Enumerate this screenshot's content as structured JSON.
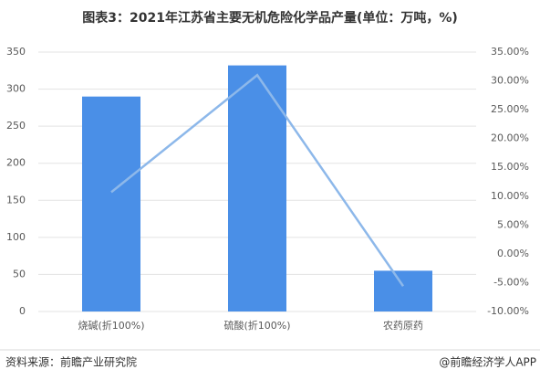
{
  "chart_data": {
    "type": "bar",
    "title": "图表3：2021年江苏省主要无机危险化学品产量(单位：万吨，%)",
    "categories": [
      "烧碱(折100%)",
      "硫酸(折100%)",
      "农药原药"
    ],
    "series": [
      {
        "type": "bar",
        "color": "#4a8fe7",
        "values": [
          290,
          332,
          55
        ]
      },
      {
        "type": "line",
        "axis": "y2",
        "color": "#8db8ea",
        "values": [
          10.7,
          31.0,
          -5.6
        ]
      }
    ],
    "ylim": [
      0,
      350
    ],
    "yticks": [
      0,
      50,
      100,
      150,
      200,
      250,
      300,
      350
    ],
    "y2lim": [
      -10,
      35
    ],
    "y2ticks": [
      {
        "value": -10,
        "label": "-10.00%"
      },
      {
        "value": -5,
        "label": "-5.00%"
      },
      {
        "value": 0,
        "label": "0.00%"
      },
      {
        "value": 5,
        "label": "5.00%"
      },
      {
        "value": 10,
        "label": "10.00%"
      },
      {
        "value": 15,
        "label": "15.00%"
      },
      {
        "value": 20,
        "label": "20.00%"
      },
      {
        "value": 25,
        "label": "25.00%"
      },
      {
        "value": 30,
        "label": "30.00%"
      },
      {
        "value": 35,
        "label": "35.00%"
      }
    ],
    "grid": true,
    "source": "资料来源：前瞻产业研究院",
    "credit": "@前瞻经济学人APP"
  }
}
